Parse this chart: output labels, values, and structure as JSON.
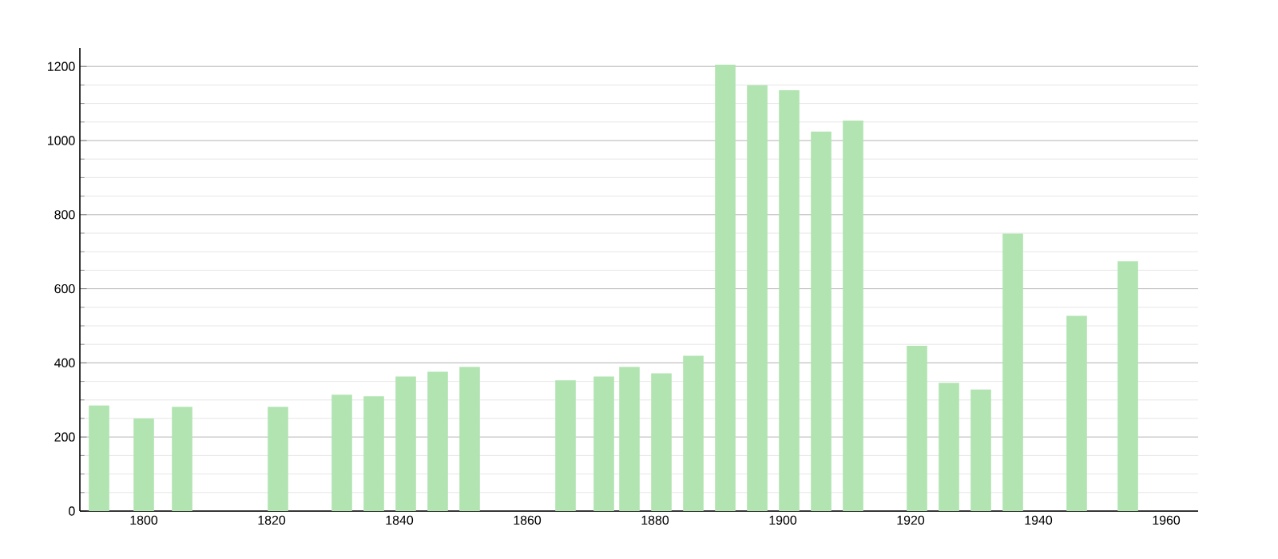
{
  "chart_data": {
    "type": "bar",
    "x": [
      1793,
      1800,
      1806,
      1821,
      1831,
      1836,
      1841,
      1846,
      1851,
      1866,
      1872,
      1876,
      1881,
      1886,
      1891,
      1896,
      1901,
      1906,
      1911,
      1921,
      1926,
      1931,
      1936,
      1946,
      1954
    ],
    "values": [
      285,
      250,
      281,
      281,
      314,
      310,
      363,
      376,
      389,
      353,
      363,
      389,
      372,
      419,
      1205,
      1149,
      1136,
      1024,
      1054,
      446,
      346,
      328,
      749,
      527,
      674
    ],
    "color": "#b1e4b1",
    "xlim": [
      1790,
      1965
    ],
    "ylim": [
      0,
      1250
    ],
    "xticks": [
      1800,
      1820,
      1840,
      1860,
      1880,
      1900,
      1920,
      1940,
      1960
    ],
    "yticks": [
      0,
      200,
      400,
      600,
      800,
      1000,
      1200
    ],
    "grid": "y"
  }
}
